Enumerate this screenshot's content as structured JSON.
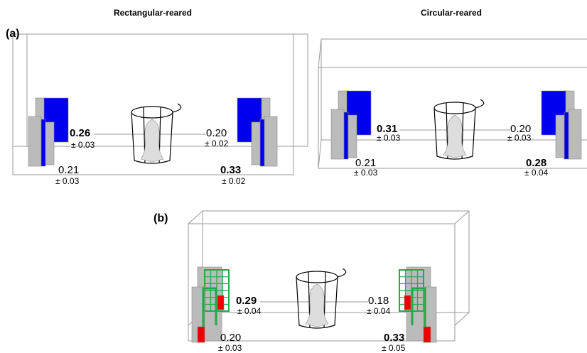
{
  "headers": [
    "Rectangular-reared",
    "Circular-reared"
  ],
  "panels": [
    {
      "label": "(a)",
      "readings": [
        {
          "value": "0.26",
          "sem": "± 0.03",
          "bold": true
        },
        {
          "value": "0.20",
          "sem": "± 0.02",
          "bold": false
        },
        {
          "value": "0.21",
          "sem": "± 0.03",
          "bold": false
        },
        {
          "value": "0.33",
          "sem": "± 0.02",
          "bold": true
        }
      ]
    },
    {
      "readings": [
        {
          "value": "0.31",
          "sem": "± 0.03",
          "bold": true
        },
        {
          "value": "0.20",
          "sem": "± 0.03",
          "bold": false
        },
        {
          "value": "0.21",
          "sem": "± 0.03",
          "bold": false
        },
        {
          "value": "0.28",
          "sem": "± 0.04",
          "bold": true
        }
      ]
    },
    {
      "label": "(b)",
      "readings": [
        {
          "value": "0.29",
          "sem": "± 0.04",
          "bold": true
        },
        {
          "value": "0.18",
          "sem": "± 0.04",
          "bold": false
        },
        {
          "value": "0.20",
          "sem": "± 0.03",
          "bold": false
        },
        {
          "value": "0.33",
          "sem": "± 0.05",
          "bold": true
        }
      ]
    }
  ]
}
